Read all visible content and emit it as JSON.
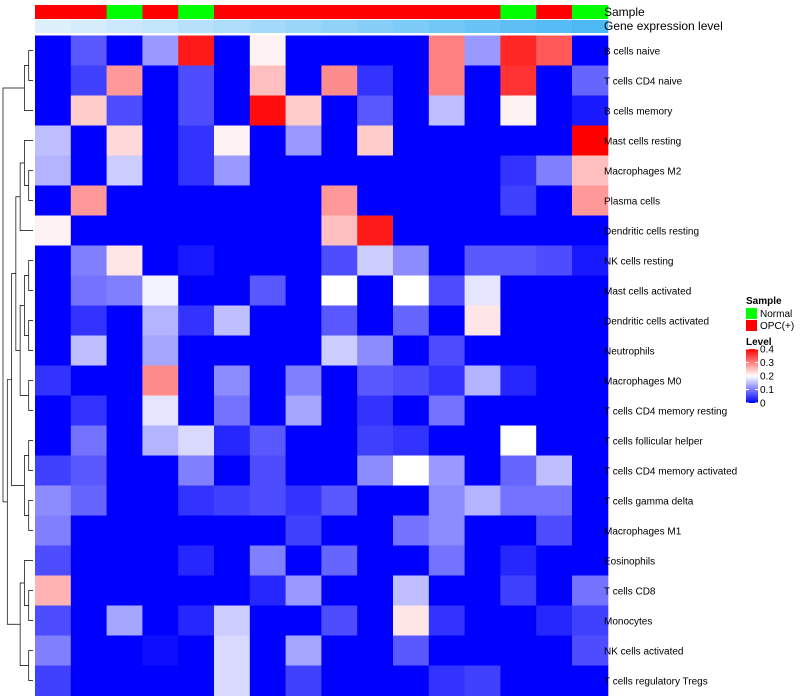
{
  "chart_data": {
    "type": "heatmap",
    "annotation_labels": {
      "sample": "Sample",
      "gene_expression": "Gene expression level"
    },
    "sample_annotation": [
      "OPC(+)",
      "OPC(+)",
      "Normal",
      "OPC(+)",
      "Normal",
      "OPC(+)",
      "OPC(+)",
      "OPC(+)",
      "OPC(+)",
      "OPC(+)",
      "OPC(+)",
      "OPC(+)",
      "OPC(+)",
      "Normal",
      "OPC(+)",
      "Normal"
    ],
    "expression_annotation": [
      0.02,
      0.04,
      0.06,
      0.08,
      0.1,
      0.12,
      0.14,
      0.16,
      0.18,
      0.2,
      0.22,
      0.24,
      0.26,
      0.28,
      0.3,
      0.32
    ],
    "rows": [
      "B cells naive",
      "T cells CD4 naive",
      "B cells memory",
      "Mast cells resting",
      "Macrophages M2",
      "Plasma cells",
      "Dendritic cells resting",
      "NK cells resting",
      "Mast cells activated",
      "Dendritic cells activated",
      "Neutrophils",
      "Macrophages M0",
      "T cells CD4 memory resting",
      "T cells follicular helper",
      "T cells CD4 memory activated",
      "T cells gamma delta",
      "Macrophages M1",
      "Eosinophils",
      "T cells CD8",
      "Monocytes",
      "NK cells activated",
      "T cells regulatory  Tregs"
    ],
    "values": [
      [
        0,
        0.07,
        0,
        0.12,
        0.38,
        0,
        0.21,
        0,
        0,
        0,
        0,
        0.3,
        0.12,
        0.37,
        0.33,
        0
      ],
      [
        0,
        0.05,
        0.28,
        0,
        0.06,
        0,
        0.25,
        0,
        0.29,
        0.04,
        0,
        0.3,
        0,
        0.36,
        0,
        0.08
      ],
      [
        0,
        0.24,
        0.06,
        0,
        0.06,
        0,
        0.39,
        0.24,
        0,
        0.07,
        0,
        0.15,
        0,
        0.21,
        0,
        0.02
      ],
      [
        0.15,
        0,
        0.23,
        0,
        0.04,
        0.21,
        0,
        0.12,
        0,
        0.24,
        0,
        0,
        0,
        0,
        0,
        0.4
      ],
      [
        0.14,
        0,
        0.16,
        0,
        0.04,
        0.12,
        0,
        0,
        0,
        0,
        0,
        0,
        0,
        0.04,
        0.1,
        0.25
      ],
      [
        0,
        0.28,
        0,
        0,
        0,
        0,
        0,
        0,
        0.28,
        0,
        0,
        0,
        0,
        0.05,
        0,
        0.28
      ],
      [
        0.21,
        0,
        0,
        0,
        0,
        0,
        0,
        0,
        0.25,
        0.38,
        0,
        0,
        0,
        0,
        0,
        0
      ],
      [
        0,
        0.1,
        0.22,
        0,
        0.02,
        0,
        0,
        0,
        0.06,
        0.16,
        0.11,
        0,
        0.07,
        0.07,
        0.06,
        0.02
      ],
      [
        0,
        0.09,
        0.1,
        0.19,
        0,
        0,
        0.07,
        0,
        0.2,
        0,
        0.2,
        0.06,
        0.18,
        0,
        0,
        0
      ],
      [
        0,
        0.04,
        0,
        0.14,
        0.04,
        0.15,
        0,
        0,
        0.07,
        0,
        0.08,
        0,
        0.22,
        0,
        0,
        0
      ],
      [
        0,
        0.15,
        0,
        0.13,
        0,
        0,
        0,
        0,
        0.16,
        0.11,
        0,
        0.06,
        0,
        0,
        0,
        0
      ],
      [
        0.04,
        0,
        0,
        0.29,
        0,
        0.11,
        0,
        0.1,
        0,
        0.07,
        0.06,
        0.04,
        0.14,
        0.03,
        0,
        0
      ],
      [
        0,
        0.04,
        0,
        0.18,
        0,
        0.09,
        0,
        0.13,
        0,
        0.04,
        0,
        0.09,
        0,
        0,
        0,
        0
      ],
      [
        0,
        0.09,
        0,
        0.14,
        0.17,
        0.03,
        0.07,
        0,
        0,
        0.05,
        0.04,
        0,
        0,
        0.2,
        0,
        0
      ],
      [
        0.05,
        0.07,
        0,
        0,
        0.1,
        0,
        0.06,
        0,
        0,
        0.11,
        0.2,
        0.12,
        0,
        0.08,
        0.15,
        0
      ],
      [
        0.11,
        0.08,
        0,
        0,
        0.04,
        0.05,
        0.06,
        0.04,
        0.07,
        0,
        0,
        0.11,
        0.14,
        0.09,
        0.09,
        0
      ],
      [
        0.1,
        0,
        0,
        0,
        0,
        0,
        0,
        0.05,
        0,
        0,
        0.09,
        0.11,
        0,
        0,
        0.06,
        0
      ],
      [
        0.06,
        0,
        0,
        0,
        0.03,
        0,
        0.1,
        0,
        0.08,
        0,
        0,
        0.09,
        0,
        0.03,
        0,
        0
      ],
      [
        0.26,
        0,
        0,
        0,
        0,
        0,
        0.03,
        0.12,
        0,
        0,
        0.15,
        0,
        0,
        0.05,
        0,
        0.09
      ],
      [
        0.06,
        0,
        0.13,
        0,
        0.03,
        0.16,
        0,
        0,
        0.06,
        0,
        0.22,
        0.04,
        0,
        0,
        0.03,
        0.05
      ],
      [
        0.1,
        0,
        0,
        0.01,
        0,
        0.17,
        0,
        0.13,
        0,
        0,
        0.07,
        0,
        0,
        0,
        0,
        0.06
      ],
      [
        0.05,
        0,
        0,
        0,
        0,
        0.17,
        0,
        0.05,
        0,
        0,
        0,
        0.04,
        0.05,
        0,
        0,
        0
      ]
    ],
    "legend": {
      "sample": {
        "title": "Sample",
        "items": [
          {
            "label": "Normal",
            "color": "#00ff00"
          },
          {
            "label": "OPC(+)",
            "color": "#ff0000"
          }
        ]
      },
      "level": {
        "title": "Level",
        "ticks": [
          "0.4",
          "0.3",
          "0.2",
          "0.1",
          "0"
        ],
        "range": [
          0,
          0.4
        ],
        "colors": [
          "#0000ff",
          "#ffffff",
          "#ff0000"
        ]
      }
    }
  }
}
